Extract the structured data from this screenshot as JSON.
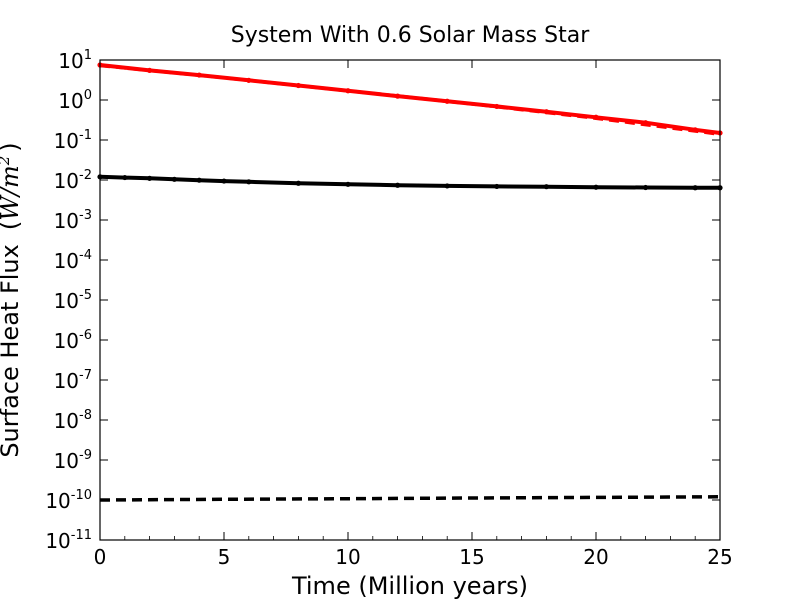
{
  "chart_data": {
    "type": "line",
    "title": "System With 0.6 Solar Mass Star",
    "xlabel": "Time  (Million years)",
    "ylabel": {
      "text": "Surface Heat Flux",
      "unit_prefix": "(",
      "unit_W": "W",
      "unit_slash": "/",
      "unit_m": "m",
      "unit_exp": "2",
      "unit_suffix": ")"
    },
    "xlim": [
      0,
      25
    ],
    "ylim_log10": [
      -11,
      1
    ],
    "y_scale": "log",
    "x_ticks": [
      0,
      5,
      10,
      15,
      20,
      25
    ],
    "x_tick_labels": [
      "0",
      "5",
      "10",
      "15",
      "20",
      "25"
    ],
    "y_ticks_exponent": [
      -11,
      -10,
      -9,
      -8,
      -7,
      -6,
      -5,
      -4,
      -3,
      -2,
      -1,
      0,
      1
    ],
    "y_tick_base": "10",
    "y_tick_exp_labels": [
      "-11",
      "-10",
      "-9",
      "-8",
      "-7",
      "-6",
      "-5",
      "-4",
      "-3",
      "-2",
      "-1",
      "0",
      "1"
    ],
    "series": [
      {
        "name": "red-solid",
        "color": "#ff0000",
        "style": "solid",
        "markers": true,
        "x": [
          0,
          2,
          4,
          6,
          8,
          10,
          12,
          14,
          16,
          18,
          20,
          22,
          24,
          25
        ],
        "y": [
          7.5,
          5.5,
          4.2,
          3.1,
          2.3,
          1.7,
          1.25,
          0.93,
          0.69,
          0.51,
          0.37,
          0.27,
          0.18,
          0.15
        ]
      },
      {
        "name": "red-dashed",
        "color": "#ff0000",
        "style": "dashed",
        "markers": false,
        "x": [
          0,
          5,
          10,
          15,
          20,
          25
        ],
        "y": [
          7.3,
          3.6,
          1.7,
          0.8,
          0.35,
          0.14
        ]
      },
      {
        "name": "black-solid",
        "color": "#000000",
        "style": "solid",
        "markers": true,
        "x": [
          0,
          1,
          2,
          3,
          4,
          5,
          6,
          8,
          10,
          12,
          14,
          16,
          18,
          20,
          22,
          24,
          25
        ],
        "y": [
          0.012,
          0.0115,
          0.011,
          0.0104,
          0.0099,
          0.0094,
          0.009,
          0.0083,
          0.0078,
          0.0074,
          0.0071,
          0.0069,
          0.0068,
          0.0066,
          0.0065,
          0.0064,
          0.0064
        ]
      },
      {
        "name": "black-dashed",
        "color": "#000000",
        "style": "dashed",
        "markers": false,
        "x": [
          0,
          5,
          10,
          15,
          20,
          25
        ],
        "y": [
          1e-10,
          1.04e-10,
          1.08e-10,
          1.12e-10,
          1.16e-10,
          1.2e-10
        ]
      }
    ],
    "grid": false,
    "legend": "none"
  }
}
